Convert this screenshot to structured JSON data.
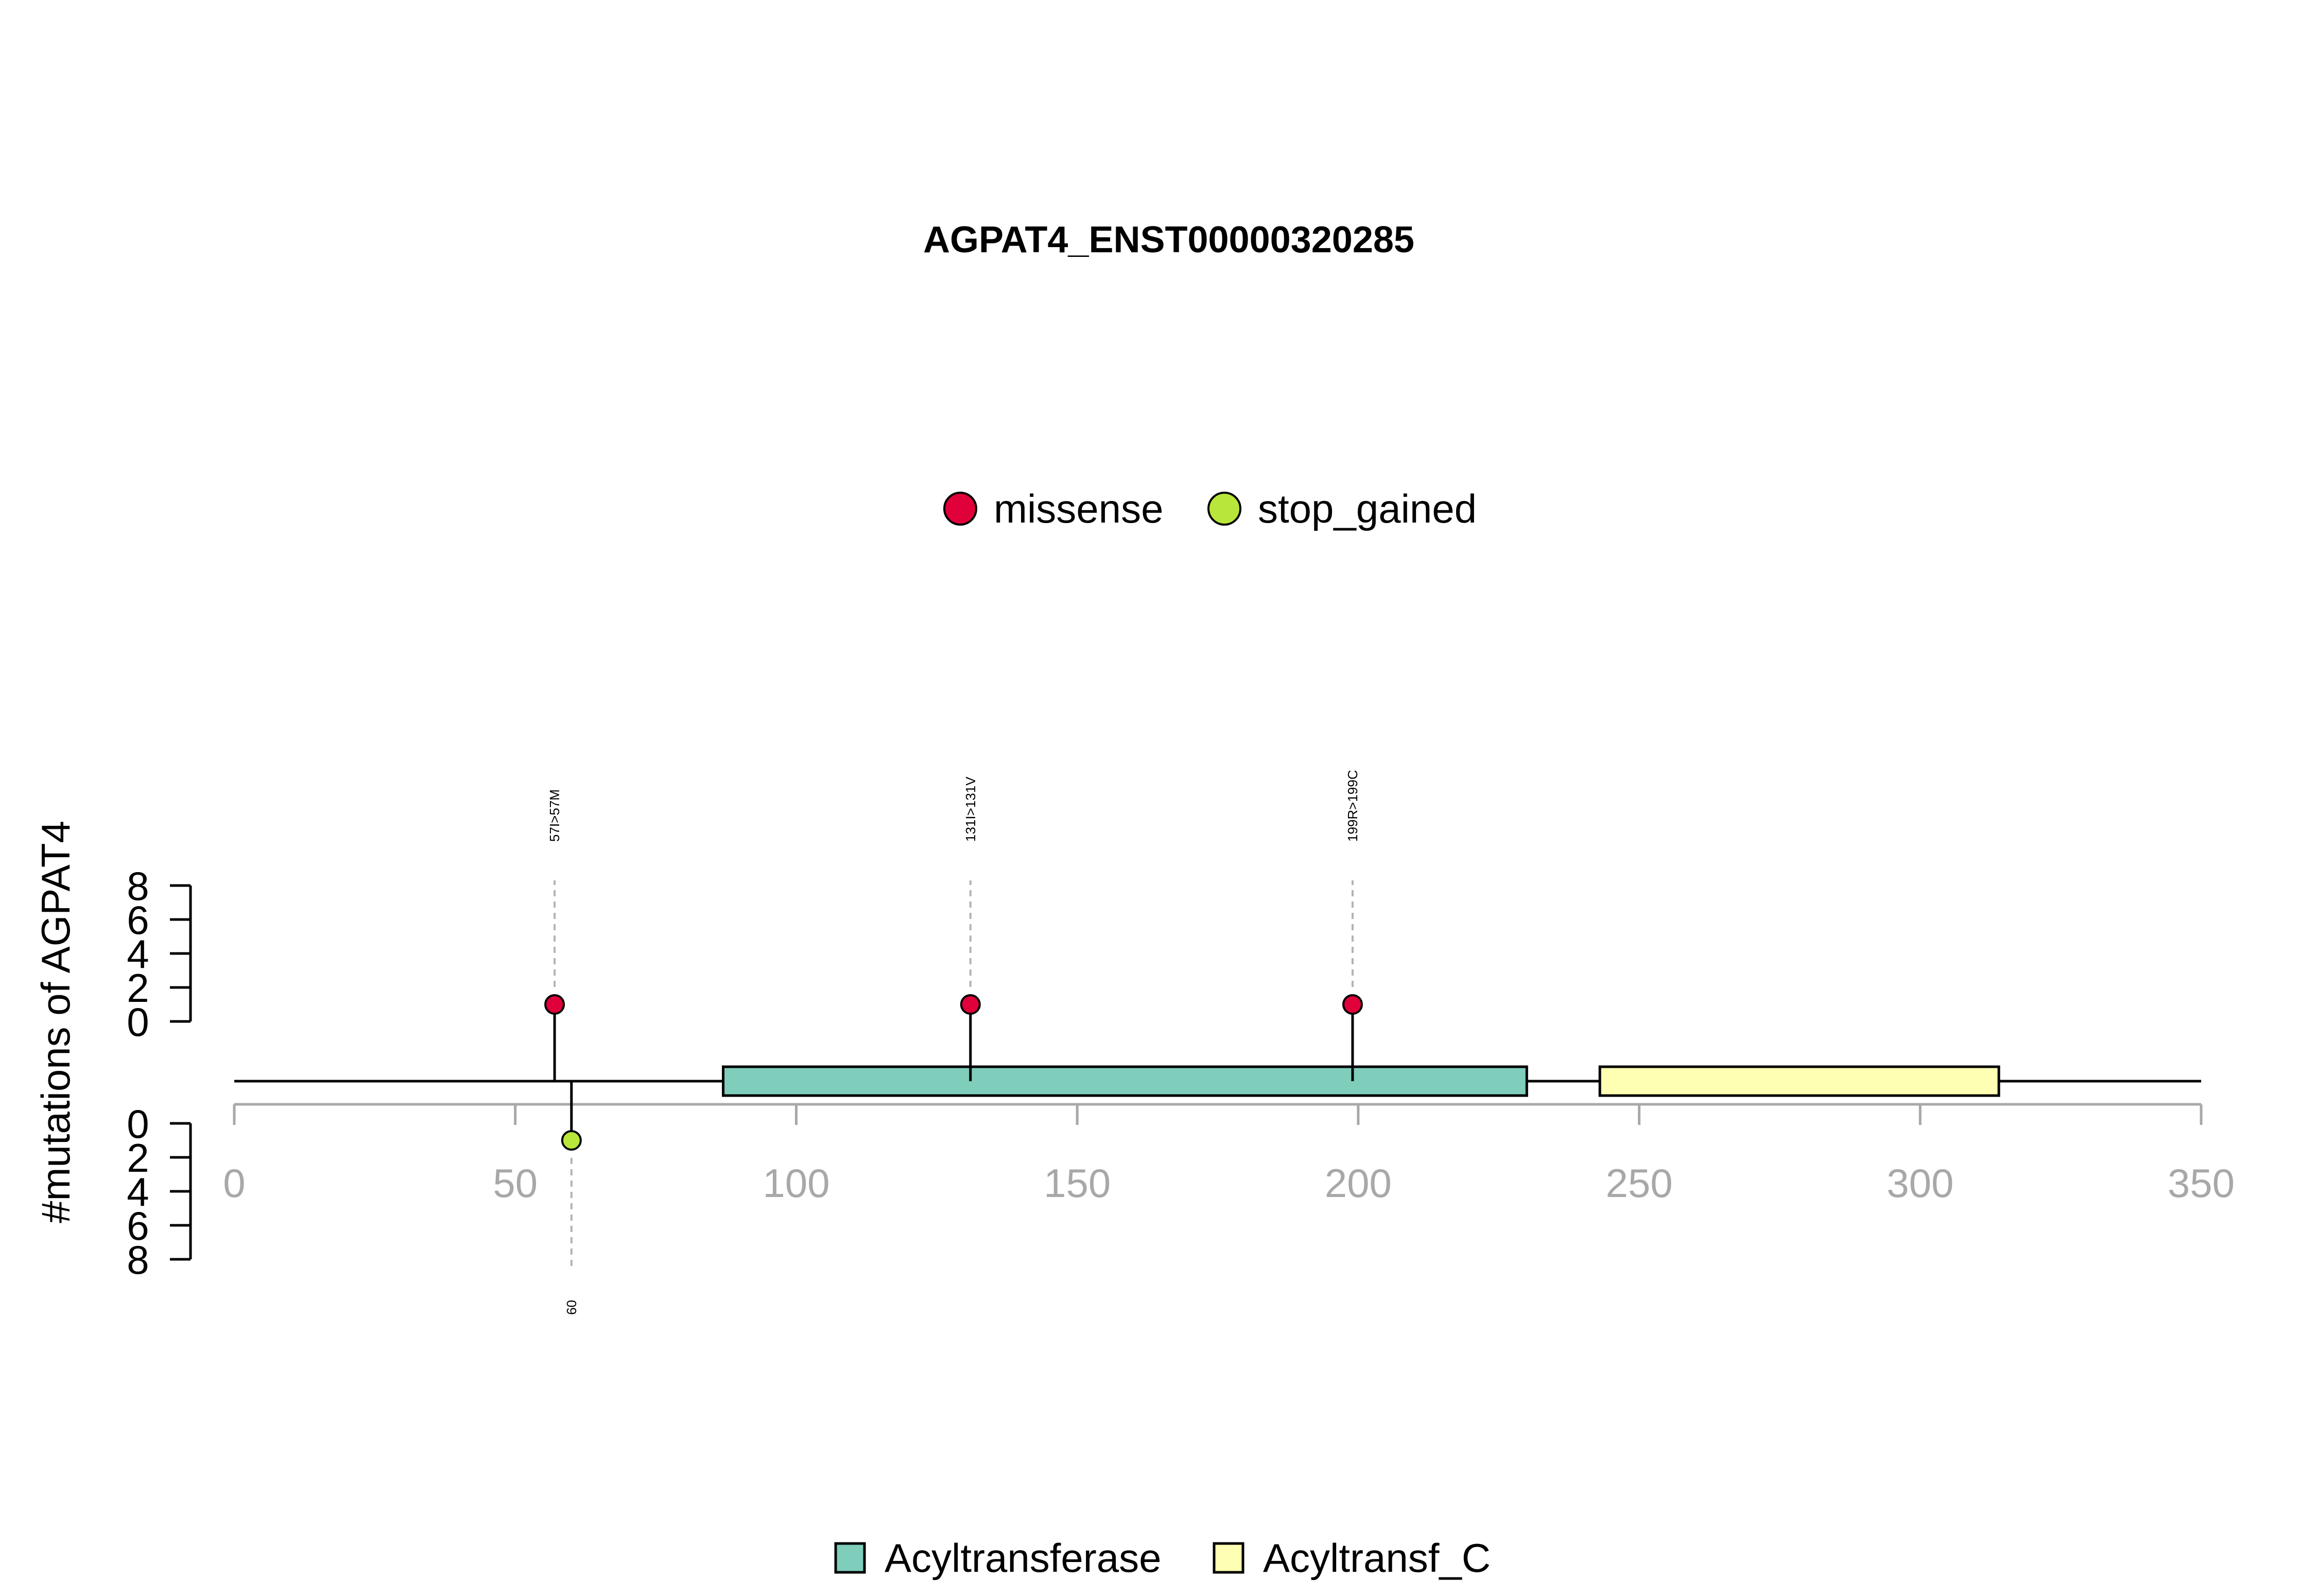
{
  "chart_data": {
    "type": "lollipop",
    "title": "AGPAT4_ENST00000320285",
    "ylabel": "#mutations of AGPAT4",
    "xlim": [
      0,
      350
    ],
    "x_ticks": [
      0,
      50,
      100,
      150,
      200,
      250,
      300,
      350
    ],
    "y_ticks": [
      0,
      2,
      4,
      6,
      8
    ],
    "protein_length": 350,
    "mutation_types": [
      {
        "name": "missense",
        "color": "#e0003a"
      },
      {
        "name": "stop_gained",
        "color": "#b8e63a"
      }
    ],
    "domains": [
      {
        "name": "Acyltransferase",
        "start": 87,
        "end": 230,
        "color": "#7fcdbb"
      },
      {
        "name": "Acyltransf_C",
        "start": 243,
        "end": 314,
        "color": "#ffffb3"
      }
    ],
    "mutations": [
      {
        "position": 57,
        "label": "57I>57M",
        "type": "missense",
        "count": 1,
        "side": "top"
      },
      {
        "position": 131,
        "label": "131I>131V",
        "type": "missense",
        "count": 1,
        "side": "top"
      },
      {
        "position": 199,
        "label": "199R>199C",
        "type": "missense",
        "count": 1,
        "side": "top"
      },
      {
        "position": 60,
        "label": "60",
        "type": "stop_gained",
        "count": 1,
        "side": "bottom"
      }
    ]
  }
}
